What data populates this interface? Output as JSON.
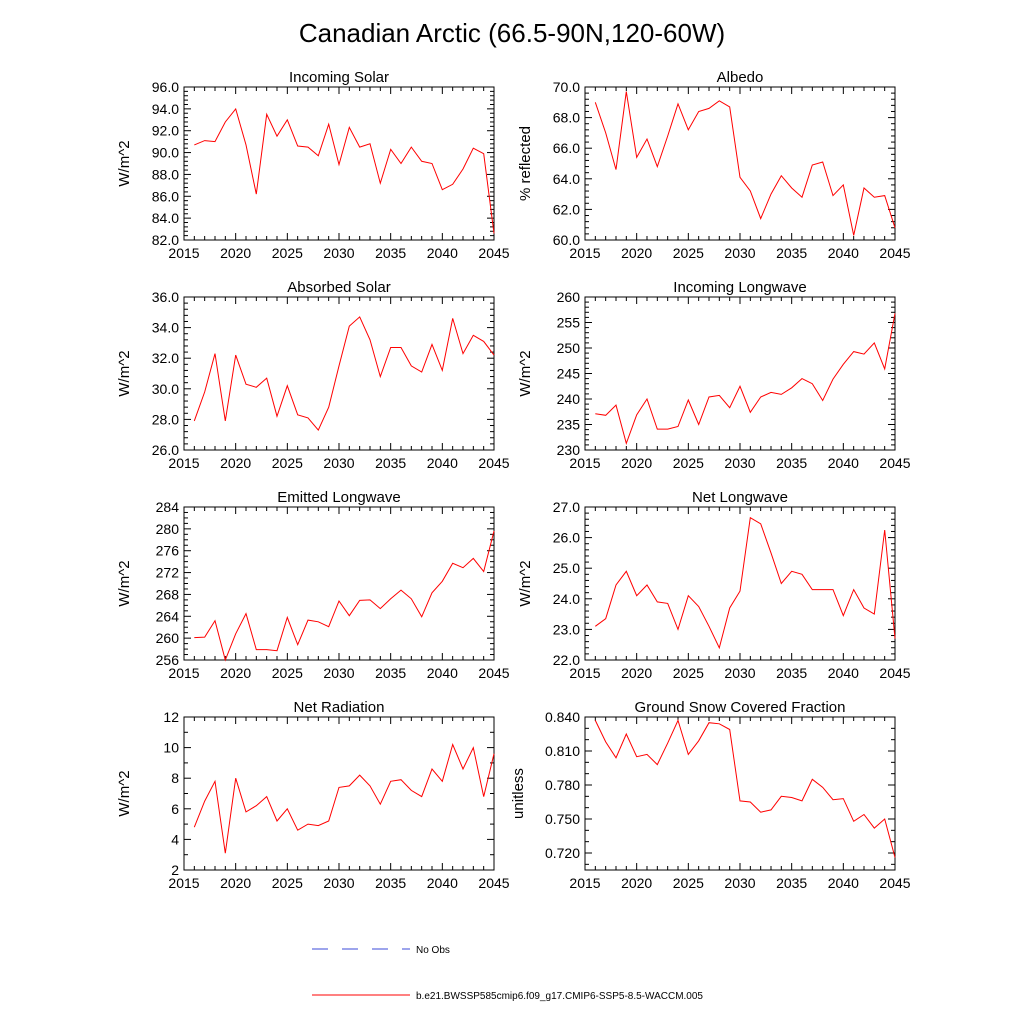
{
  "main_title": "Canadian Arctic (66.5-90N,120-60W)",
  "colors": {
    "model_line": "#ff0000",
    "obs_line": "#3b4bd8",
    "axis": "#000000"
  },
  "legend": {
    "obs_label": "No Obs",
    "model_label": "b.e21.BWSSP585cmip6.f09_g17.CMIP6-SSP5-8.5-WACCM.005"
  },
  "chart_data": [
    {
      "type": "line",
      "title": "Incoming Solar",
      "xlabel": "",
      "ylabel": "W/m^2",
      "xlim": [
        2015,
        2045
      ],
      "ylim": [
        82,
        96
      ],
      "xticks": [
        2015,
        2020,
        2025,
        2030,
        2035,
        2040,
        2045
      ],
      "yticks": [
        82,
        84,
        86,
        88,
        90,
        92,
        94,
        96
      ],
      "ydecimals": 1,
      "yminor": 4,
      "x": [
        2016,
        2017,
        2018,
        2019,
        2020,
        2021,
        2022,
        2023,
        2024,
        2025,
        2026,
        2027,
        2028,
        2029,
        2030,
        2031,
        2032,
        2033,
        2034,
        2035,
        2036,
        2037,
        2038,
        2039,
        2040,
        2041,
        2042,
        2043,
        2044,
        2045
      ],
      "series": [
        {
          "name": "b.e21.BWSSP585cmip6.f09_g17.CMIP6-SSP5-8.5-WACCM.005",
          "values": [
            90.7,
            91.1,
            91.0,
            92.8,
            94.0,
            90.7,
            86.2,
            93.5,
            91.5,
            93.0,
            90.6,
            90.5,
            89.7,
            92.6,
            88.9,
            92.3,
            90.5,
            90.8,
            87.2,
            90.3,
            89.0,
            90.5,
            89.2,
            89.0,
            86.6,
            87.1,
            88.5,
            90.4,
            89.9,
            82.6
          ]
        }
      ]
    },
    {
      "type": "line",
      "title": "Albedo",
      "xlabel": "",
      "ylabel": "% reflected",
      "xlim": [
        2015,
        2045
      ],
      "ylim": [
        60,
        70
      ],
      "xticks": [
        2015,
        2020,
        2025,
        2030,
        2035,
        2040,
        2045
      ],
      "yticks": [
        60,
        62,
        64,
        66,
        68,
        70
      ],
      "ydecimals": 1,
      "yminor": 4,
      "x": [
        2016,
        2017,
        2018,
        2019,
        2020,
        2021,
        2022,
        2023,
        2024,
        2025,
        2026,
        2027,
        2028,
        2029,
        2030,
        2031,
        2032,
        2033,
        2034,
        2035,
        2036,
        2037,
        2038,
        2039,
        2040,
        2041,
        2042,
        2043,
        2044,
        2045
      ],
      "series": [
        {
          "name": "b.e21.BWSSP585cmip6.f09_g17.CMIP6-SSP5-8.5-WACCM.005",
          "values": [
            69.0,
            67.0,
            64.6,
            69.7,
            65.4,
            66.6,
            64.8,
            66.8,
            68.9,
            67.2,
            68.4,
            68.6,
            69.1,
            68.7,
            64.1,
            63.2,
            61.4,
            63.0,
            64.2,
            63.4,
            62.8,
            64.9,
            65.1,
            62.9,
            63.6,
            60.3,
            63.4,
            62.8,
            62.9,
            60.8
          ]
        }
      ]
    },
    {
      "type": "line",
      "title": "Absorbed Solar",
      "xlabel": "",
      "ylabel": "W/m^2",
      "xlim": [
        2015,
        2045
      ],
      "ylim": [
        26,
        36
      ],
      "xticks": [
        2015,
        2020,
        2025,
        2030,
        2035,
        2040,
        2045
      ],
      "yticks": [
        26,
        28,
        30,
        32,
        34,
        36
      ],
      "ydecimals": 1,
      "yminor": 4,
      "x": [
        2016,
        2017,
        2018,
        2019,
        2020,
        2021,
        2022,
        2023,
        2024,
        2025,
        2026,
        2027,
        2028,
        2029,
        2030,
        2031,
        2032,
        2033,
        2034,
        2035,
        2036,
        2037,
        2038,
        2039,
        2040,
        2041,
        2042,
        2043,
        2044,
        2045
      ],
      "series": [
        {
          "name": "b.e21.BWSSP585cmip6.f09_g17.CMIP6-SSP5-8.5-WACCM.005",
          "values": [
            27.9,
            29.8,
            32.3,
            27.9,
            32.2,
            30.3,
            30.1,
            30.7,
            28.2,
            30.2,
            28.3,
            28.1,
            27.3,
            28.8,
            31.5,
            34.1,
            34.7,
            33.2,
            30.8,
            32.7,
            32.7,
            31.5,
            31.1,
            32.9,
            31.2,
            34.6,
            32.3,
            33.5,
            33.1,
            32.2
          ]
        }
      ]
    },
    {
      "type": "line",
      "title": "Incoming Longwave",
      "xlabel": "",
      "ylabel": "W/m^2",
      "xlim": [
        2015,
        2045
      ],
      "ylim": [
        230,
        260
      ],
      "xticks": [
        2015,
        2020,
        2025,
        2030,
        2035,
        2040,
        2045
      ],
      "yticks": [
        230,
        235,
        240,
        245,
        250,
        255,
        260
      ],
      "ydecimals": 0,
      "yminor": 4,
      "x": [
        2016,
        2017,
        2018,
        2019,
        2020,
        2021,
        2022,
        2023,
        2024,
        2025,
        2026,
        2027,
        2028,
        2029,
        2030,
        2031,
        2032,
        2033,
        2034,
        2035,
        2036,
        2037,
        2038,
        2039,
        2040,
        2041,
        2042,
        2043,
        2044,
        2045
      ],
      "series": [
        {
          "name": "b.e21.BWSSP585cmip6.f09_g17.CMIP6-SSP5-8.5-WACCM.005",
          "values": [
            237.1,
            236.8,
            238.8,
            231.3,
            236.9,
            240.0,
            234.1,
            234.1,
            234.6,
            239.8,
            235.0,
            240.4,
            240.7,
            238.3,
            242.5,
            237.4,
            240.4,
            241.3,
            240.9,
            242.2,
            244.0,
            243.0,
            239.7,
            243.9,
            246.8,
            249.3,
            248.8,
            251.0,
            245.9,
            256.8
          ]
        }
      ]
    },
    {
      "type": "line",
      "title": "Emitted Longwave",
      "xlabel": "",
      "ylabel": "W/m^2",
      "xlim": [
        2015,
        2045
      ],
      "ylim": [
        256,
        284
      ],
      "xticks": [
        2015,
        2020,
        2025,
        2030,
        2035,
        2040,
        2045
      ],
      "yticks": [
        256,
        260,
        264,
        268,
        272,
        276,
        280,
        284
      ],
      "ydecimals": 0,
      "yminor": 3,
      "x": [
        2016,
        2017,
        2018,
        2019,
        2020,
        2021,
        2022,
        2023,
        2024,
        2025,
        2026,
        2027,
        2028,
        2029,
        2030,
        2031,
        2032,
        2033,
        2034,
        2035,
        2036,
        2037,
        2038,
        2039,
        2040,
        2041,
        2042,
        2043,
        2044,
        2045
      ],
      "series": [
        {
          "name": "b.e21.BWSSP585cmip6.f09_g17.CMIP6-SSP5-8.5-WACCM.005",
          "values": [
            260.1,
            260.2,
            263.2,
            256.0,
            260.8,
            264.5,
            257.9,
            257.9,
            257.7,
            263.8,
            258.8,
            263.3,
            263.0,
            262.1,
            266.8,
            264.1,
            266.9,
            267.0,
            265.4,
            267.2,
            268.8,
            267.2,
            263.9,
            268.3,
            270.4,
            273.7,
            272.9,
            274.6,
            272.2,
            279.6
          ]
        }
      ]
    },
    {
      "type": "line",
      "title": "Net Longwave",
      "xlabel": "",
      "ylabel": "W/m^2",
      "xlim": [
        2015,
        2045
      ],
      "ylim": [
        22,
        27
      ],
      "xticks": [
        2015,
        2020,
        2025,
        2030,
        2035,
        2040,
        2045
      ],
      "yticks": [
        22,
        23,
        24,
        25,
        26,
        27
      ],
      "ydecimals": 1,
      "yminor": 4,
      "x": [
        2016,
        2017,
        2018,
        2019,
        2020,
        2021,
        2022,
        2023,
        2024,
        2025,
        2026,
        2027,
        2028,
        2029,
        2030,
        2031,
        2032,
        2033,
        2034,
        2035,
        2036,
        2037,
        2038,
        2039,
        2040,
        2041,
        2042,
        2043,
        2044,
        2045
      ],
      "series": [
        {
          "name": "b.e21.BWSSP585cmip6.f09_g17.CMIP6-SSP5-8.5-WACCM.005",
          "values": [
            23.1,
            23.35,
            24.45,
            24.9,
            24.1,
            24.45,
            23.9,
            23.85,
            23.0,
            24.1,
            23.75,
            23.1,
            22.4,
            23.7,
            24.25,
            26.65,
            26.45,
            25.5,
            24.5,
            24.9,
            24.8,
            24.3,
            24.3,
            24.3,
            23.45,
            24.3,
            23.7,
            23.5,
            26.25,
            22.7
          ]
        }
      ]
    },
    {
      "type": "line",
      "title": "Net Radiation",
      "xlabel": "",
      "ylabel": "W/m^2",
      "xlim": [
        2015,
        2045
      ],
      "ylim": [
        2,
        12
      ],
      "xticks": [
        2015,
        2020,
        2025,
        2030,
        2035,
        2040,
        2045
      ],
      "yticks": [
        2,
        4,
        6,
        8,
        10,
        12
      ],
      "ydecimals": 0,
      "yminor": 1,
      "x": [
        2016,
        2017,
        2018,
        2019,
        2020,
        2021,
        2022,
        2023,
        2024,
        2025,
        2026,
        2027,
        2028,
        2029,
        2030,
        2031,
        2032,
        2033,
        2034,
        2035,
        2036,
        2037,
        2038,
        2039,
        2040,
        2041,
        2042,
        2043,
        2044,
        2045
      ],
      "series": [
        {
          "name": "b.e21.BWSSP585cmip6.f09_g17.CMIP6-SSP5-8.5-WACCM.005",
          "values": [
            4.8,
            6.5,
            7.8,
            3.1,
            8.0,
            5.8,
            6.2,
            6.8,
            5.2,
            6.0,
            4.6,
            5.0,
            4.9,
            5.2,
            7.4,
            7.5,
            8.2,
            7.5,
            6.3,
            7.8,
            7.9,
            7.2,
            6.8,
            8.6,
            7.8,
            10.2,
            8.6,
            10.0,
            6.8,
            9.6
          ]
        }
      ]
    },
    {
      "type": "line",
      "title": "Ground Snow Covered Fraction",
      "xlabel": "",
      "ylabel": "unitless",
      "xlim": [
        2015,
        2045
      ],
      "ylim": [
        0.705,
        0.84
      ],
      "xticks": [
        2015,
        2020,
        2025,
        2030,
        2035,
        2040,
        2045
      ],
      "yticks": [
        0.72,
        0.75,
        0.78,
        0.81,
        0.84
      ],
      "ydecimals": 3,
      "yminor": 2,
      "x": [
        2016,
        2017,
        2018,
        2019,
        2020,
        2021,
        2022,
        2023,
        2024,
        2025,
        2026,
        2027,
        2028,
        2029,
        2030,
        2031,
        2032,
        2033,
        2034,
        2035,
        2036,
        2037,
        2038,
        2039,
        2040,
        2041,
        2042,
        2043,
        2044,
        2045
      ],
      "series": [
        {
          "name": "b.e21.BWSSP585cmip6.f09_g17.CMIP6-SSP5-8.5-WACCM.005",
          "values": [
            0.837,
            0.818,
            0.804,
            0.825,
            0.805,
            0.807,
            0.798,
            0.817,
            0.837,
            0.807,
            0.819,
            0.835,
            0.834,
            0.829,
            0.766,
            0.765,
            0.756,
            0.758,
            0.77,
            0.769,
            0.766,
            0.785,
            0.778,
            0.767,
            0.768,
            0.748,
            0.754,
            0.742,
            0.75,
            0.716
          ]
        }
      ]
    }
  ]
}
